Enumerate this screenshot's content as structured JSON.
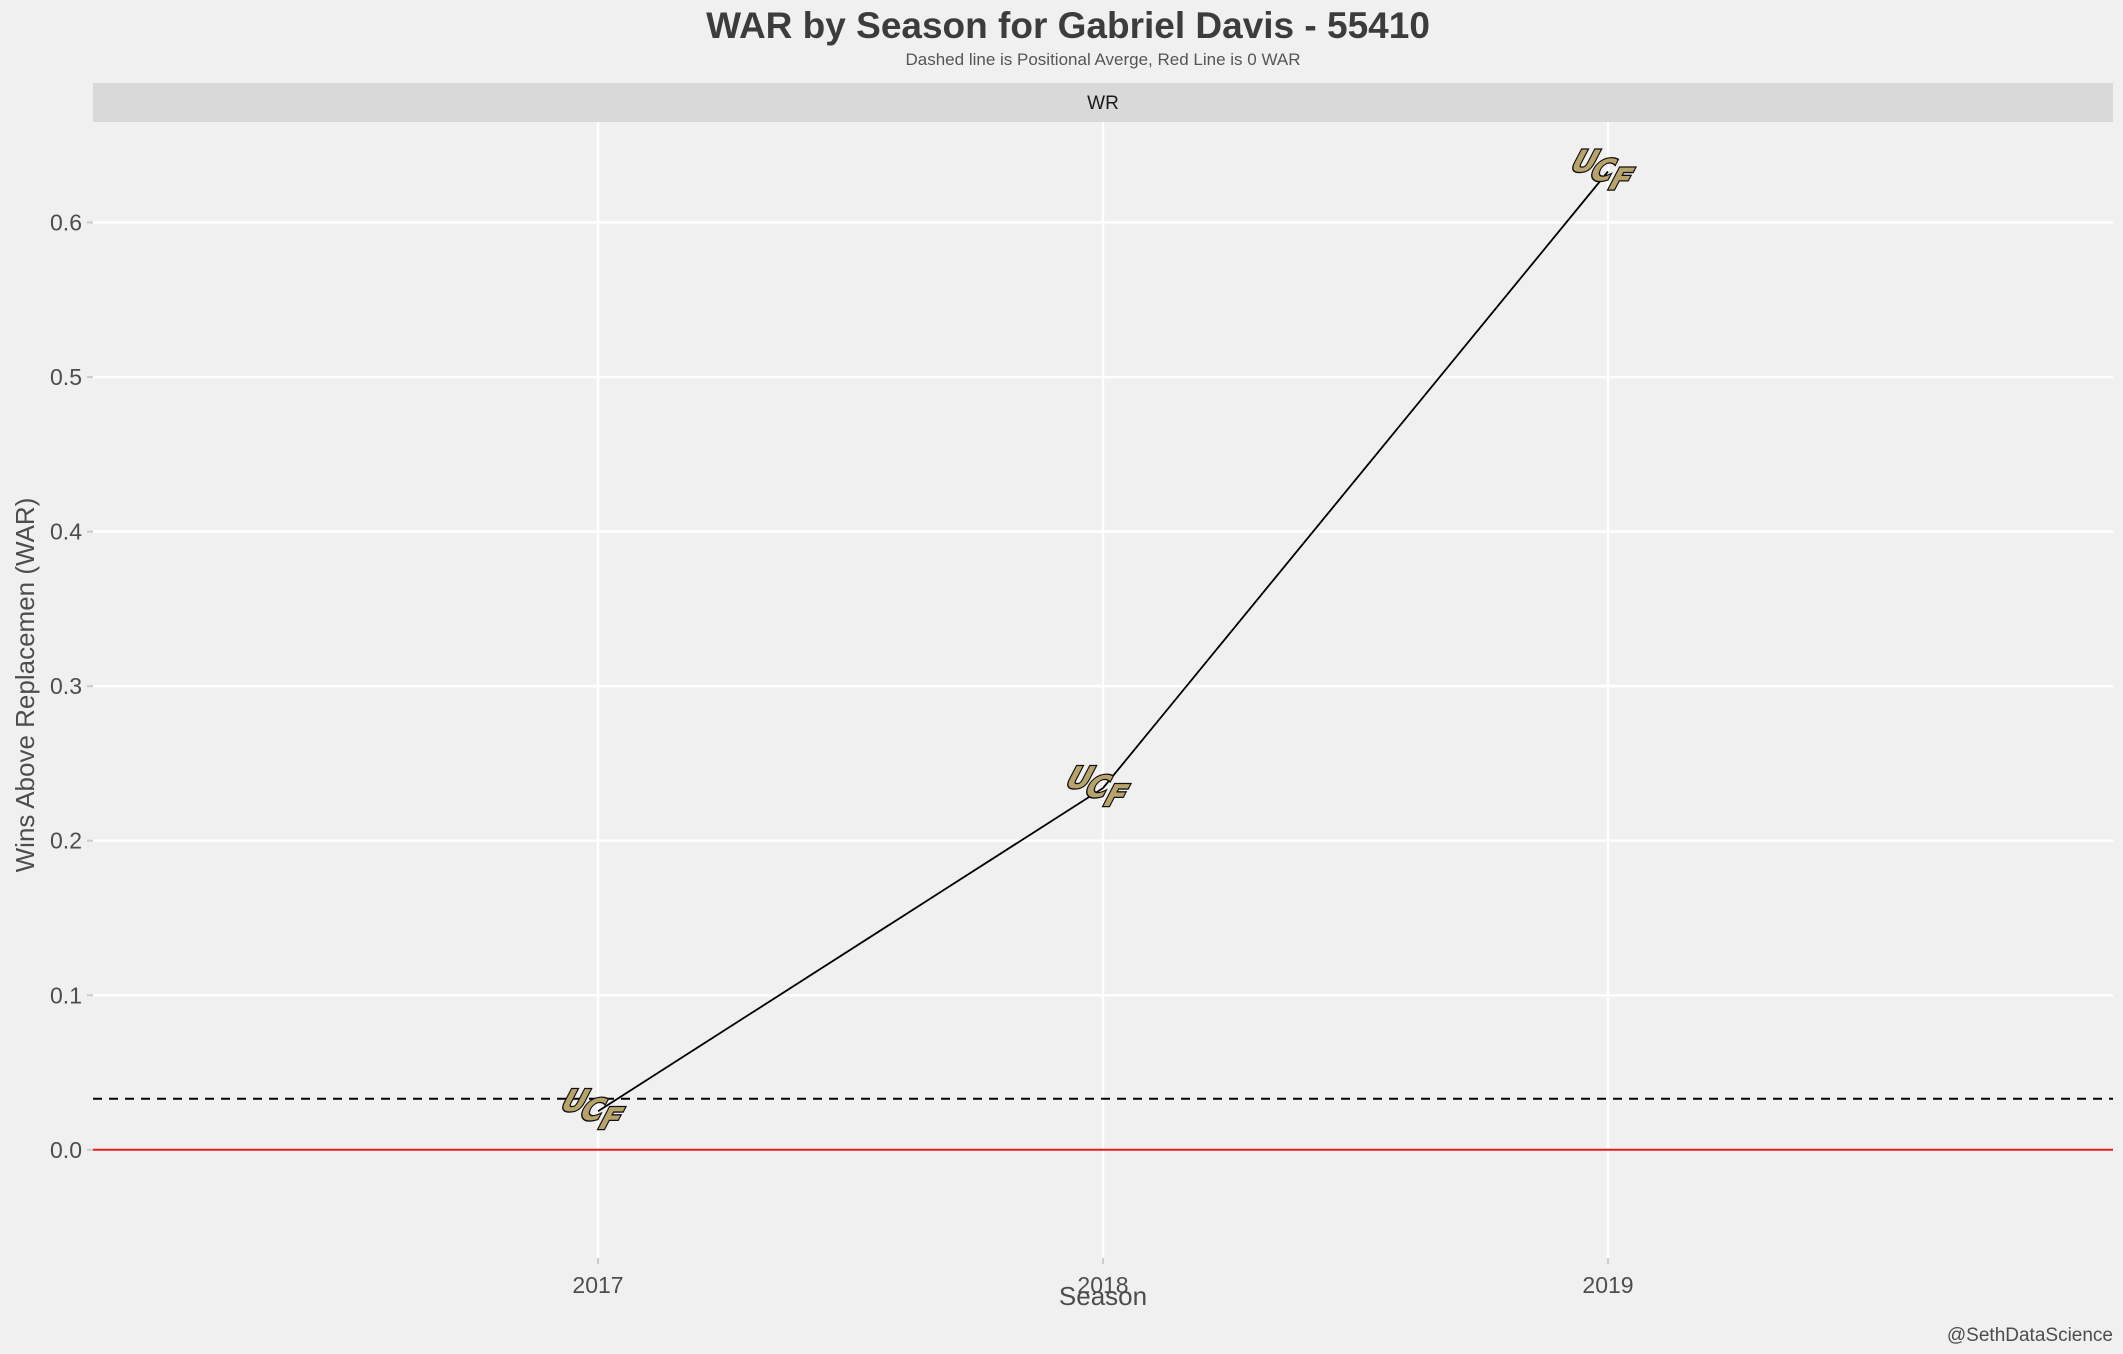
{
  "chart_data": {
    "type": "line",
    "title": "WAR by Season for Gabriel Davis - 55410",
    "subtitle": "Dashed line is Positional Averge, Red Line is 0 WAR",
    "facet_label": "WR",
    "xlabel": "Season",
    "ylabel": "Wins Above Replacemen (WAR)",
    "caption": "@SethDataScience",
    "categories": [
      "2017",
      "2018",
      "2019"
    ],
    "x_tick_labels": [
      "2017",
      "2018",
      "2019"
    ],
    "y_tick_labels": [
      "0.0",
      "0.1",
      "0.2",
      "0.3",
      "0.4",
      "0.5",
      "0.6"
    ],
    "y_ticks": [
      0.0,
      0.1,
      0.2,
      0.3,
      0.4,
      0.5,
      0.6
    ],
    "ylim": [
      -0.07,
      0.665
    ],
    "series": [
      {
        "values": [
          0.025,
          0.234,
          0.633
        ]
      }
    ],
    "marker": "UCF logo",
    "positional_average": 0.033,
    "zero_line": 0.0,
    "grid": true,
    "colors": {
      "background": "#f0f0f0",
      "grid": "#ffffff",
      "strip": "#d9d9d9",
      "line": "#000000",
      "dashed_line": "#000000",
      "zero_line": "#e41a1c",
      "logo_gold": "#b8a36a",
      "logo_black": "#111111"
    }
  }
}
